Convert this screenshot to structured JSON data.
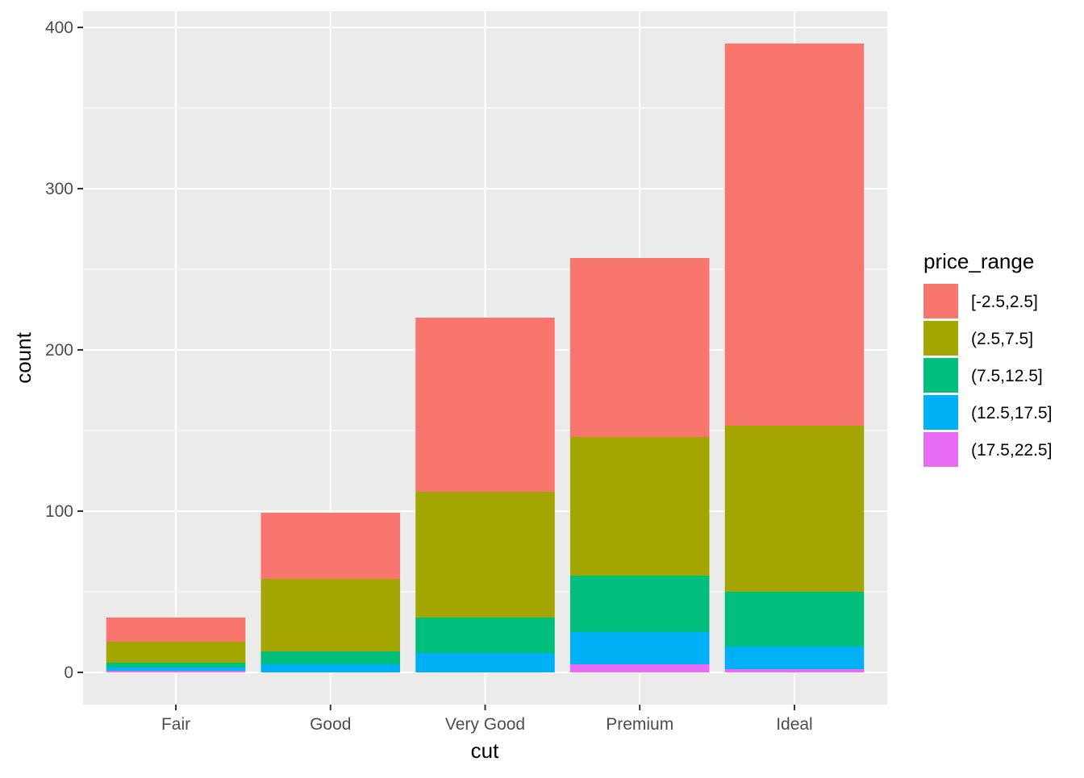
{
  "chart_data": {
    "type": "bar",
    "stacked": true,
    "xlabel": "cut",
    "ylabel": "count",
    "categories": [
      "Fair",
      "Good",
      "Very Good",
      "Premium",
      "Ideal"
    ],
    "ylim": [
      -20,
      410
    ],
    "yticks": [
      0,
      100,
      200,
      300,
      400
    ],
    "grid": true,
    "legend": {
      "title": "price_range",
      "position": "right"
    },
    "series": [
      {
        "name": "(17.5,22.5]",
        "color": "#E76BF3",
        "values": [
          1,
          0,
          0,
          5,
          2
        ]
      },
      {
        "name": "(12.5,17.5]",
        "color": "#00B0F6",
        "values": [
          2,
          5,
          12,
          20,
          14
        ]
      },
      {
        "name": "(7.5,12.5]",
        "color": "#00BF7D",
        "values": [
          3,
          8,
          22,
          35,
          34
        ]
      },
      {
        "name": "(2.5,7.5]",
        "color": "#A3A500",
        "values": [
          13,
          45,
          78,
          86,
          103
        ]
      },
      {
        "name": "[-2.5,2.5]",
        "color": "#F8766D",
        "values": [
          15,
          41,
          108,
          111,
          237
        ]
      }
    ],
    "legend_order": [
      "[-2.5,2.5]",
      "(2.5,7.5]",
      "(7.5,12.5]",
      "(12.5,17.5]",
      "(17.5,22.5]"
    ],
    "panel_background": "#EBEBEB",
    "grid_color": "#FFFFFF"
  }
}
